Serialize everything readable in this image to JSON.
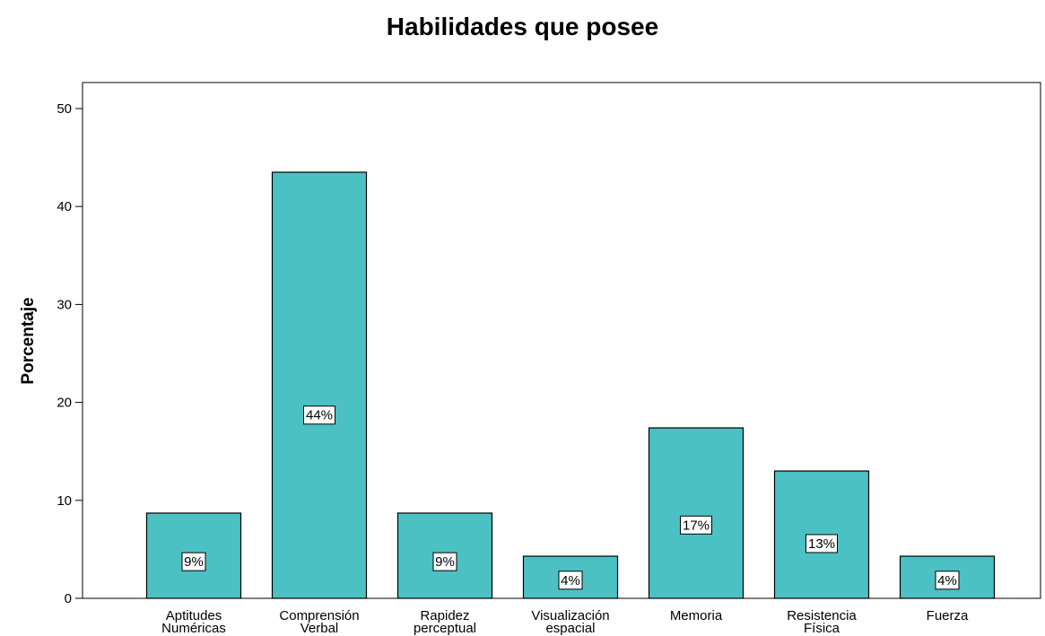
{
  "chart_data": {
    "type": "bar",
    "title": "Habilidades que posee",
    "xlabel": "",
    "ylabel": "Porcentaje",
    "ylim": [
      0,
      52
    ],
    "yticks": [
      0,
      10,
      20,
      30,
      40,
      50
    ],
    "categories": [
      [
        "Aptitudes",
        "Numéricas"
      ],
      [
        "Comprensión",
        "Verbal"
      ],
      [
        "Rapidez",
        "perceptual"
      ],
      [
        "Visualización",
        "espacial"
      ],
      [
        "Memoria"
      ],
      [
        "Resistencia",
        "Física"
      ],
      [
        "Fuerza"
      ]
    ],
    "values": [
      8.7,
      43.5,
      8.7,
      4.3,
      17.4,
      13.0,
      4.3
    ],
    "data_labels": [
      "9%",
      "44%",
      "9%",
      "4%",
      "17%",
      "13%",
      "4%"
    ],
    "bar_color": "#4cc1c3",
    "grid": false
  }
}
